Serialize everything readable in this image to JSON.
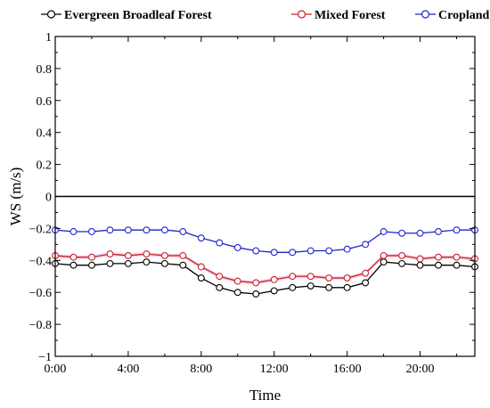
{
  "chart_data": {
    "type": "line",
    "xlabel": "Time",
    "ylabel": "WS (m/s)",
    "xlim": [
      0,
      23
    ],
    "ylim": [
      -1,
      1
    ],
    "x": [
      0,
      1,
      2,
      3,
      4,
      5,
      6,
      7,
      8,
      9,
      10,
      11,
      12,
      13,
      14,
      15,
      16,
      17,
      18,
      19,
      20,
      21,
      22,
      23
    ],
    "x_ticks": [
      0,
      4,
      8,
      12,
      16,
      20
    ],
    "x_tick_labels": [
      "0:00",
      "4:00",
      "8:00",
      "12:00",
      "16:00",
      "20:00"
    ],
    "y_ticks": [
      -1,
      -0.8,
      -0.6,
      -0.4,
      -0.2,
      0,
      0.2,
      0.4,
      0.6,
      0.8,
      1
    ],
    "y_tick_labels": [
      "−1",
      "−0.8",
      "−0.6",
      "−0.4",
      "−0.2",
      "0",
      "0.2",
      "0.4",
      "0.6",
      "0.8",
      "1"
    ],
    "reference_line_y": 0,
    "grid": false,
    "legend_position": "top",
    "series": [
      {
        "name": "Evergreen Broadleaf Forest",
        "color": "#000000",
        "values": [
          -0.42,
          -0.43,
          -0.43,
          -0.42,
          -0.42,
          -0.41,
          -0.42,
          -0.43,
          -0.51,
          -0.57,
          -0.6,
          -0.61,
          -0.59,
          -0.57,
          -0.56,
          -0.57,
          -0.57,
          -0.54,
          -0.41,
          -0.42,
          -0.43,
          -0.43,
          -0.43,
          -0.44
        ]
      },
      {
        "name": "Mixed Forest",
        "color": "#cc2222",
        "band_color": "#f4c8e8",
        "values": [
          -0.37,
          -0.38,
          -0.38,
          -0.36,
          -0.37,
          -0.36,
          -0.37,
          -0.37,
          -0.44,
          -0.5,
          -0.53,
          -0.54,
          -0.52,
          -0.5,
          -0.5,
          -0.51,
          -0.51,
          -0.48,
          -0.37,
          -0.37,
          -0.39,
          -0.38,
          -0.38,
          -0.39
        ]
      },
      {
        "name": "Cropland",
        "color": "#2222cc",
        "values": [
          -0.21,
          -0.22,
          -0.22,
          -0.21,
          -0.21,
          -0.21,
          -0.21,
          -0.22,
          -0.26,
          -0.29,
          -0.32,
          -0.34,
          -0.35,
          -0.35,
          -0.34,
          -0.34,
          -0.33,
          -0.3,
          -0.22,
          -0.23,
          -0.23,
          -0.22,
          -0.21,
          -0.21
        ]
      }
    ]
  }
}
